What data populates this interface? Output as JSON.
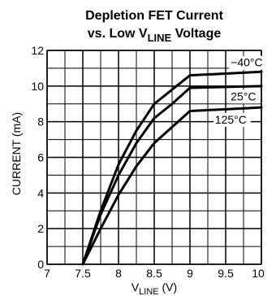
{
  "chart_data": {
    "type": "line",
    "title_line1": "Depletion FET Current",
    "title_line2_pre": "vs. Low V",
    "title_line2_sub": "LINE",
    "title_line2_post": " Voltage",
    "xlabel_pre": "V",
    "xlabel_sub": "LINE",
    "xlabel_post": " (V)",
    "ylabel": "CURRENT (mA)",
    "xlim": [
      7,
      10
    ],
    "ylim": [
      0,
      12
    ],
    "x_major_ticks": [
      7,
      7.5,
      8,
      8.5,
      9,
      9.5,
      10
    ],
    "x_tick_labels": [
      "7",
      "7.5",
      "8",
      "8.5",
      "9",
      "9.5",
      "10"
    ],
    "y_major_ticks": [
      0,
      2,
      4,
      6,
      8,
      10,
      12
    ],
    "y_tick_labels": [
      "0",
      "2",
      "4",
      "6",
      "8",
      "10",
      "12"
    ],
    "x_minor_step": 0.25,
    "y_minor_step": 1,
    "grid": true,
    "series": [
      {
        "name": "−40°C",
        "x": [
          7.5,
          7.75,
          8,
          8.25,
          8.5,
          8.75,
          9,
          9.5,
          10
        ],
        "y": [
          0,
          3.0,
          5.6,
          7.5,
          9.0,
          9.8,
          10.6,
          10.7,
          10.8
        ]
      },
      {
        "name": "25°C",
        "x": [
          7.5,
          7.75,
          8,
          8.25,
          8.5,
          8.75,
          9,
          9.5,
          10
        ],
        "y": [
          0,
          2.8,
          5.0,
          6.8,
          8.2,
          9.0,
          9.9,
          9.95,
          10.0
        ]
      },
      {
        "name": "125°C",
        "x": [
          7.5,
          7.75,
          8,
          8.25,
          8.5,
          8.75,
          9,
          9.5,
          10
        ],
        "y": [
          0,
          2.0,
          3.9,
          5.5,
          6.8,
          7.7,
          8.6,
          8.7,
          8.8
        ]
      }
    ],
    "annotations": [
      {
        "text": "−40°C",
        "x": 9.57,
        "y": 11.1
      },
      {
        "text": "25°C",
        "x": 9.57,
        "y": 9.2
      },
      {
        "text": "125°C",
        "x": 9.35,
        "y": 7.9
      }
    ]
  }
}
